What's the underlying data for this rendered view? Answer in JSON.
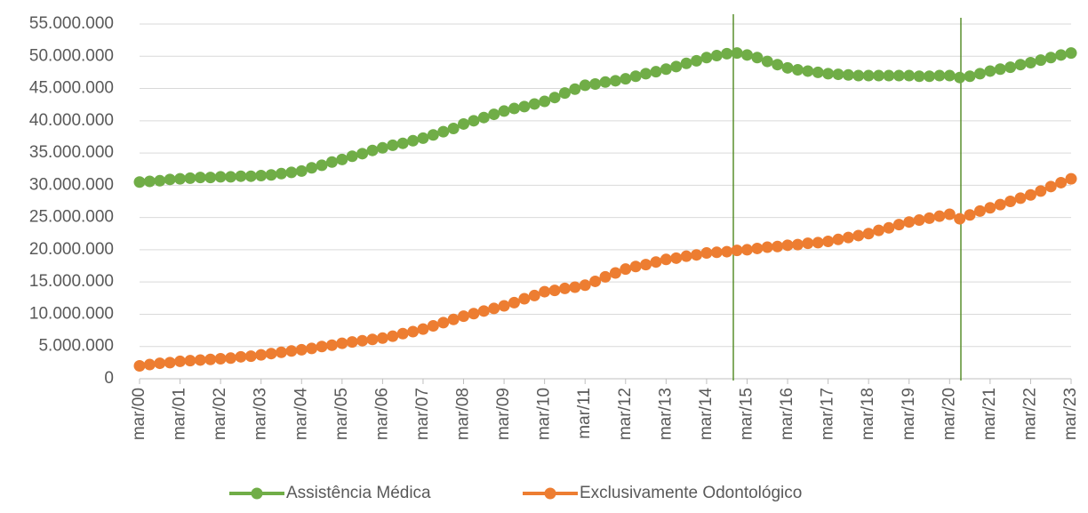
{
  "chart_data": {
    "type": "line",
    "categories": [
      "mar/00",
      null,
      null,
      null,
      "mar/01",
      null,
      null,
      null,
      "mar/02",
      null,
      null,
      null,
      "mar/03",
      null,
      null,
      null,
      "mar/04",
      null,
      null,
      null,
      "mar/05",
      null,
      null,
      null,
      "mar/06",
      null,
      null,
      null,
      "mar/07",
      null,
      null,
      null,
      "mar/08",
      null,
      null,
      null,
      "mar/09",
      null,
      null,
      null,
      "mar/10",
      null,
      null,
      null,
      "mar/11",
      null,
      null,
      null,
      "mar/12",
      null,
      null,
      null,
      "mar/13",
      null,
      null,
      null,
      "mar/14",
      null,
      null,
      null,
      "mar/15",
      null,
      null,
      null,
      "mar/16",
      null,
      null,
      null,
      "mar/17",
      null,
      null,
      null,
      "mar/18",
      null,
      null,
      null,
      "mar/19",
      null,
      null,
      null,
      "mar/20",
      null,
      null,
      null,
      "mar/21",
      null,
      null,
      null,
      "mar/22",
      null,
      null,
      null,
      "mar/23"
    ],
    "series": [
      {
        "name": "Assistência Médica",
        "color": "#70ad47",
        "values": [
          30500000,
          30600000,
          30700000,
          30900000,
          31000000,
          31100000,
          31200000,
          31200000,
          31300000,
          31300000,
          31400000,
          31400000,
          31500000,
          31600000,
          31800000,
          32000000,
          32200000,
          32700000,
          33100000,
          33600000,
          34000000,
          34500000,
          34900000,
          35400000,
          35800000,
          36200000,
          36500000,
          36900000,
          37300000,
          37800000,
          38300000,
          38800000,
          39500000,
          40000000,
          40500000,
          41000000,
          41500000,
          41900000,
          42200000,
          42600000,
          43000000,
          43600000,
          44300000,
          44900000,
          45500000,
          45700000,
          46000000,
          46200000,
          46500000,
          46900000,
          47300000,
          47600000,
          48000000,
          48400000,
          48900000,
          49300000,
          49800000,
          50100000,
          50400000,
          50500000,
          50200000,
          49800000,
          49200000,
          48700000,
          48200000,
          47900000,
          47700000,
          47500000,
          47300000,
          47200000,
          47100000,
          47000000,
          47000000,
          47000000,
          47000000,
          47000000,
          47000000,
          46900000,
          46900000,
          47000000,
          47000000,
          46700000,
          46900000,
          47300000,
          47700000,
          48000000,
          48300000,
          48700000,
          49000000,
          49400000,
          49800000,
          50200000,
          50500000
        ]
      },
      {
        "name": "Exclusivamente Odontológico",
        "color": "#ed7d31",
        "values": [
          2000000,
          2200000,
          2400000,
          2500000,
          2700000,
          2800000,
          2900000,
          3000000,
          3100000,
          3200000,
          3400000,
          3500000,
          3700000,
          3900000,
          4100000,
          4300000,
          4500000,
          4700000,
          5000000,
          5200000,
          5500000,
          5700000,
          5900000,
          6100000,
          6300000,
          6600000,
          7000000,
          7300000,
          7700000,
          8200000,
          8700000,
          9200000,
          9700000,
          10100000,
          10500000,
          10900000,
          11300000,
          11800000,
          12400000,
          12900000,
          13500000,
          13700000,
          14000000,
          14200000,
          14500000,
          15100000,
          15800000,
          16400000,
          17000000,
          17400000,
          17700000,
          18100000,
          18500000,
          18700000,
          19000000,
          19200000,
          19500000,
          19600000,
          19700000,
          19900000,
          20000000,
          20200000,
          20400000,
          20500000,
          20700000,
          20800000,
          21000000,
          21100000,
          21300000,
          21600000,
          21900000,
          22200000,
          22500000,
          23000000,
          23400000,
          23900000,
          24300000,
          24600000,
          24900000,
          25200000,
          25500000,
          24800000,
          25400000,
          26000000,
          26500000,
          27000000,
          27500000,
          28000000,
          28500000,
          29100000,
          29800000,
          30400000,
          31000000
        ]
      }
    ],
    "ylim": [
      0,
      55000000
    ],
    "yticks": [
      0,
      {
        "value": 5000000,
        "label": "5.000.000"
      },
      {
        "value": 10000000,
        "label": "10.000.000"
      },
      {
        "value": 15000000,
        "label": "15.000.000"
      },
      {
        "value": 20000000,
        "label": "20.000.000"
      },
      {
        "value": 25000000,
        "label": "25.000.000"
      },
      {
        "value": 30000000,
        "label": "30.000.000"
      },
      {
        "value": 35000000,
        "label": "35.000.000"
      },
      {
        "value": 40000000,
        "label": "40.000.000"
      },
      {
        "value": 45000000,
        "label": "45.000.000"
      },
      {
        "value": 50000000,
        "label": "50.000.000"
      },
      {
        "value": 55000000,
        "label": "55.000.000"
      }
    ],
    "grid": true,
    "legend": "bottom"
  }
}
